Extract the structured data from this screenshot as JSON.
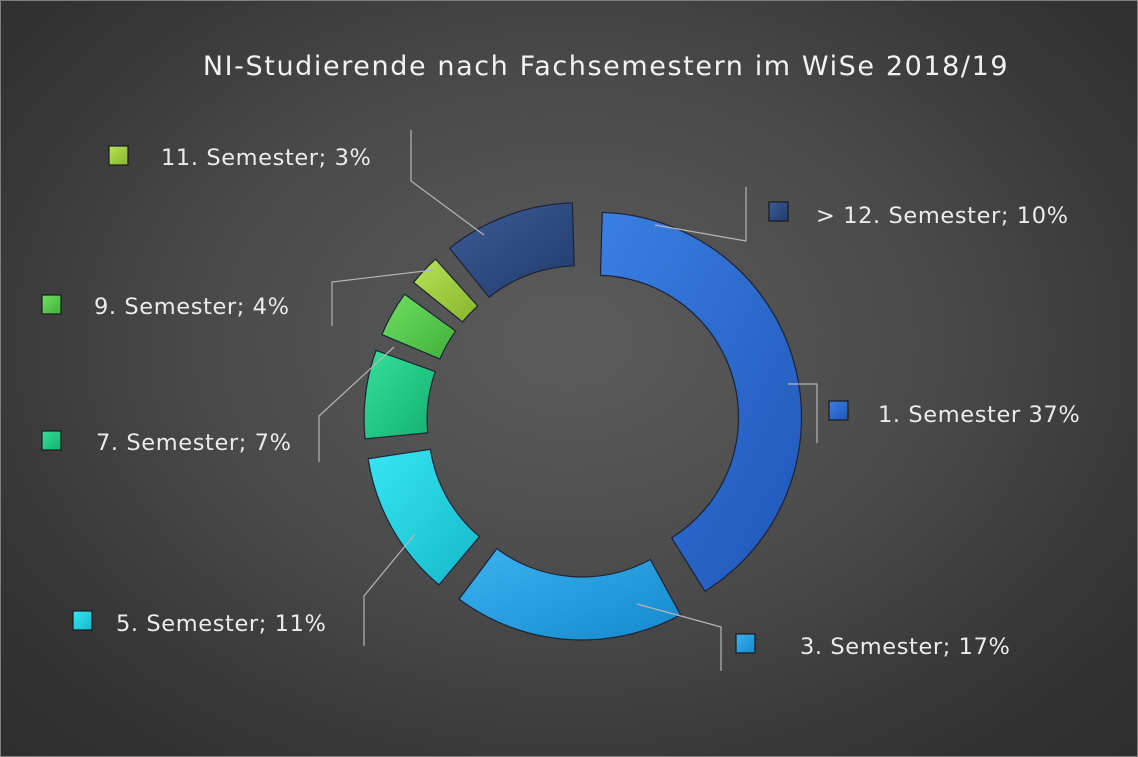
{
  "chart_data": {
    "type": "donut",
    "title": "NI-Studierende nach Fachsemestern im WiSe 2018/19",
    "slices": [
      {
        "name": "1. Semester",
        "value": 37,
        "label": "1. Semester 37%",
        "color": "#3a7fe3",
        "color_dark": "#1f56b8"
      },
      {
        "name": "3. Semester",
        "value": 17,
        "label": "3. Semester; 17%",
        "color": "#3cb2f0",
        "color_dark": "#1589cc"
      },
      {
        "name": "5. Semester",
        "value": 11,
        "label": "5. Semester; 11%",
        "color": "#36e6f3",
        "color_dark": "#14b9c9"
      },
      {
        "name": "7. Semester",
        "value": 7,
        "label": "7. Semester; 7%",
        "color": "#36df9a",
        "color_dark": "#12b171"
      },
      {
        "name": "9. Semester",
        "value": 4,
        "label": "9. Semester; 4%",
        "color": "#6fdf62",
        "color_dark": "#41b03a"
      },
      {
        "name": "11. Semester",
        "value": 3,
        "label": "11. Semester; 3%",
        "color": "#b6e356",
        "color_dark": "#86b52c"
      },
      {
        "name": "> 12. Semester",
        "value": 10,
        "label": "> 12. Semester; 10%",
        "color": "#3d5c96",
        "color_dark": "#203a6c"
      }
    ]
  }
}
